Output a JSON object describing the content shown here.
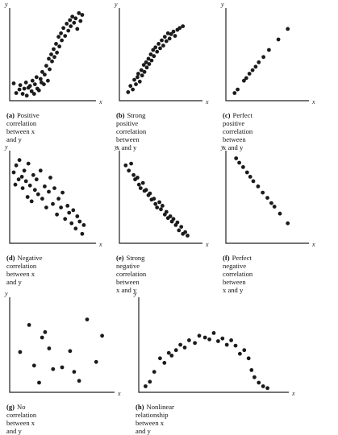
{
  "axes": {
    "x_label": "x",
    "y_label": "y"
  },
  "chart_data": [
    {
      "id": "a",
      "type": "scatter",
      "caption_letter": "(a)",
      "caption_lines": [
        "Positive correlation",
        "between x and y"
      ],
      "x": [
        2,
        5,
        9,
        10,
        13,
        15,
        17,
        18,
        20,
        22,
        24,
        25,
        27,
        28,
        30,
        31,
        33,
        35,
        36,
        37,
        39,
        40,
        42,
        44,
        45,
        46,
        48,
        49,
        51,
        52,
        54,
        55,
        57,
        58,
        60,
        61,
        63,
        65,
        67,
        69,
        71,
        72,
        74,
        76,
        78,
        80,
        82,
        84,
        86
      ],
      "y": [
        17,
        6,
        10,
        15,
        5,
        11,
        18,
        3,
        12,
        14,
        8,
        20,
        5,
        16,
        24,
        11,
        9,
        22,
        18,
        30,
        16,
        27,
        37,
        20,
        45,
        33,
        50,
        42,
        56,
        47,
        62,
        52,
        70,
        59,
        74,
        66,
        80,
        71,
        85,
        77,
        89,
        82,
        93,
        86,
        91,
        79,
        97,
        88,
        95
      ]
    },
    {
      "id": "b",
      "type": "scatter",
      "caption_letter": "(b)",
      "caption_lines": [
        "Strong positive",
        "correlation between",
        "x and y"
      ],
      "x": [
        8,
        11,
        14,
        16,
        18,
        20,
        21,
        23,
        25,
        26,
        28,
        29,
        31,
        32,
        34,
        35,
        37,
        38,
        40,
        41,
        43,
        45,
        47,
        49,
        51,
        53,
        55,
        57,
        59,
        61,
        63,
        66,
        68,
        71,
        74,
        78
      ],
      "y": [
        7,
        14,
        10,
        21,
        16,
        24,
        28,
        19,
        32,
        26,
        38,
        30,
        41,
        35,
        45,
        39,
        50,
        43,
        55,
        48,
        58,
        53,
        62,
        57,
        66,
        60,
        70,
        65,
        74,
        68,
        73,
        76,
        71,
        78,
        80,
        82
      ]
    },
    {
      "id": "c",
      "type": "scatter",
      "caption_letter": "(c)",
      "caption_lines": [
        "Perfect positive",
        "correlation between",
        "x and y"
      ],
      "x": [
        8,
        12,
        20,
        23,
        27,
        31,
        35,
        39,
        45,
        52,
        64,
        76
      ],
      "y": [
        6,
        10,
        20,
        23,
        28,
        32,
        36,
        41,
        47,
        55,
        67,
        79
      ]
    },
    {
      "id": "d",
      "type": "scatter",
      "caption_letter": "(d)",
      "caption_lines": [
        "Negative correlation",
        "between x and y"
      ],
      "x": [
        2,
        4,
        5,
        8,
        9,
        12,
        13,
        15,
        17,
        19,
        20,
        22,
        24,
        26,
        28,
        30,
        32,
        35,
        37,
        40,
        42,
        45,
        47,
        50,
        52,
        55,
        57,
        60,
        62,
        65,
        68,
        70,
        73,
        75,
        78,
        80,
        83,
        86,
        88
      ],
      "y": [
        78,
        64,
        86,
        70,
        92,
        73,
        60,
        80,
        68,
        50,
        88,
        63,
        45,
        75,
        58,
        70,
        53,
        80,
        48,
        62,
        38,
        56,
        72,
        42,
        60,
        30,
        48,
        38,
        55,
        25,
        40,
        32,
        20,
        35,
        14,
        28,
        22,
        8,
        18
      ]
    },
    {
      "id": "e",
      "type": "scatter",
      "caption_letter": "(e)",
      "caption_lines": [
        "Strong negative",
        "correlation between",
        "x and y"
      ],
      "x": [
        5,
        9,
        12,
        15,
        17,
        20,
        22,
        24,
        27,
        29,
        31,
        34,
        36,
        38,
        41,
        43,
        45,
        48,
        50,
        52,
        55,
        57,
        59,
        62,
        64,
        66,
        69,
        71,
        73,
        76,
        78,
        81,
        84
      ],
      "y": [
        86,
        80,
        88,
        75,
        70,
        72,
        64,
        60,
        66,
        57,
        58,
        52,
        54,
        47,
        48,
        42,
        38,
        44,
        36,
        40,
        30,
        33,
        26,
        28,
        22,
        25,
        18,
        21,
        12,
        16,
        8,
        10,
        6
      ]
    },
    {
      "id": "f",
      "type": "scatter",
      "caption_letter": "(f)",
      "caption_lines": [
        "Perfect negative",
        "correlation between",
        "x and y"
      ],
      "x": [
        10,
        14,
        19,
        24,
        28,
        32,
        38,
        44,
        50,
        55,
        59,
        66,
        76
      ],
      "y": [
        94,
        89,
        84,
        78,
        73,
        68,
        62,
        55,
        49,
        43,
        39,
        31,
        20
      ]
    },
    {
      "id": "g",
      "type": "scatter",
      "caption_letter": "(g)",
      "caption_lines": [
        "No correlation",
        "between x and y"
      ],
      "x": [
        8,
        17,
        22,
        27,
        30,
        33,
        37,
        41,
        50,
        58,
        62,
        67,
        75,
        84,
        90
      ],
      "y": [
        42,
        72,
        27,
        8,
        58,
        64,
        46,
        23,
        25,
        43,
        20,
        10,
        78,
        31,
        60
      ]
    },
    {
      "id": "h",
      "type": "scatter",
      "caption_letter": "(h)",
      "caption_lines": [
        "Nonlinear relationship",
        "between x and y"
      ],
      "x": [
        3,
        6,
        9,
        13,
        16,
        19,
        21,
        24,
        27,
        30,
        33,
        37,
        40,
        44,
        47,
        50,
        53,
        56,
        59,
        62,
        65,
        68,
        71,
        74,
        76,
        78,
        81,
        84,
        87
      ],
      "y": [
        4,
        9,
        20,
        35,
        30,
        41,
        38,
        44,
        50,
        47,
        55,
        52,
        60,
        58,
        56,
        63,
        54,
        57,
        50,
        55,
        49,
        40,
        44,
        35,
        22,
        14,
        8,
        4,
        2
      ]
    }
  ]
}
